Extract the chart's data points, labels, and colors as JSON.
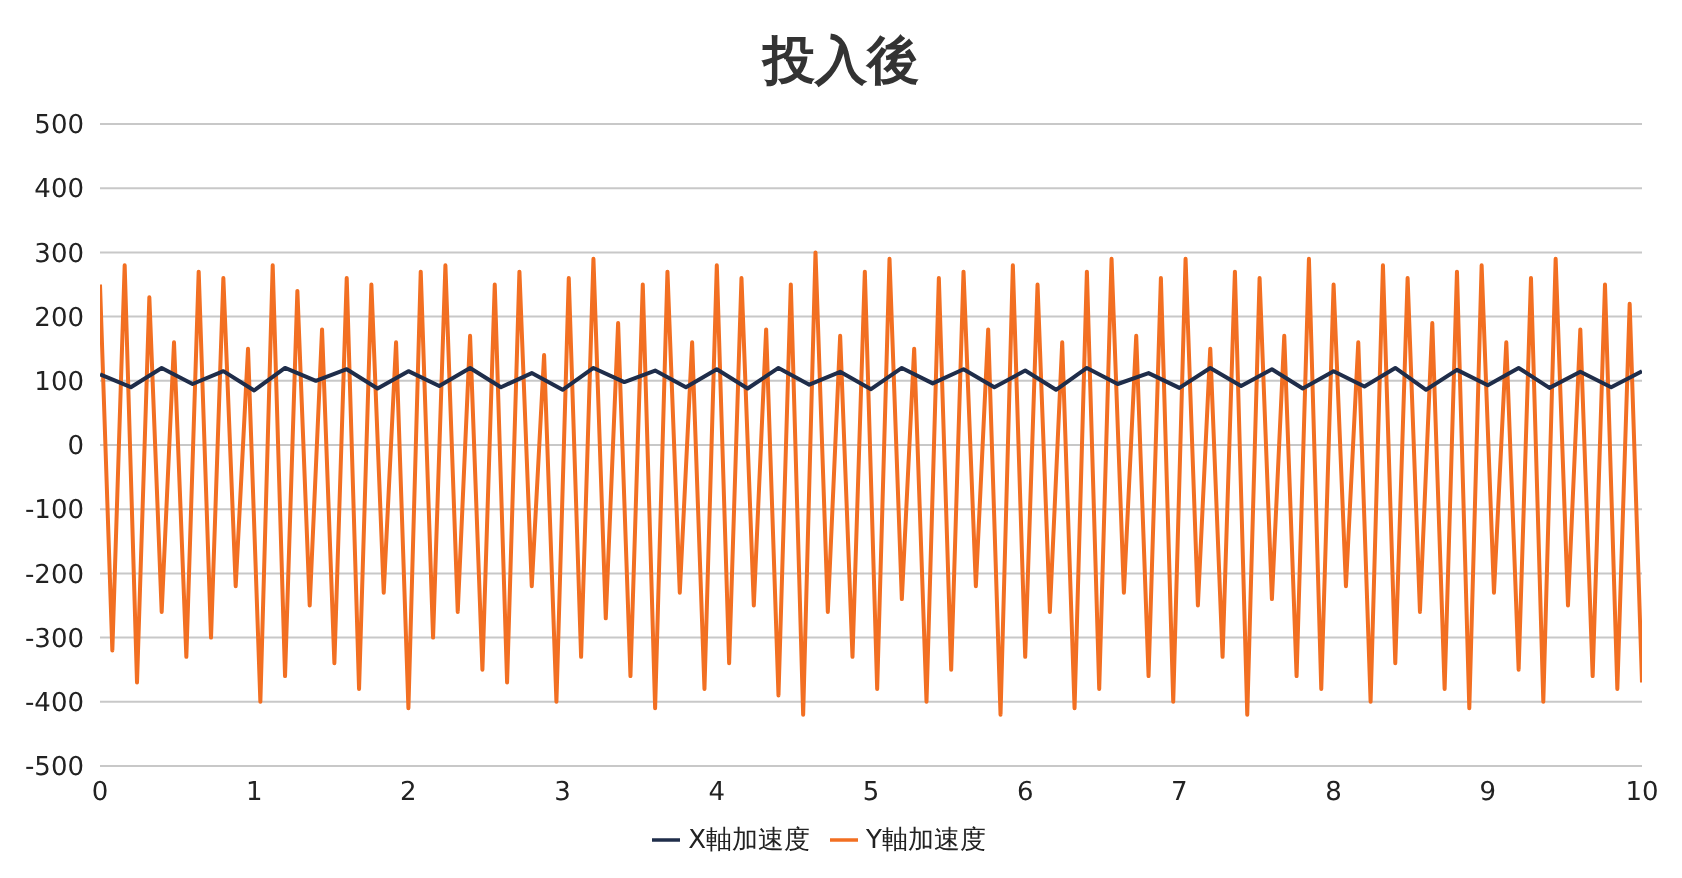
{
  "chart_data": {
    "type": "line",
    "title": "投入後",
    "xlim": [
      0,
      10
    ],
    "xticks": [
      0,
      1,
      2,
      3,
      4,
      5,
      6,
      7,
      8,
      9,
      10
    ],
    "ylim": [
      -500,
      500
    ],
    "yticks": [
      -500,
      -400,
      -300,
      -200,
      -100,
      0,
      100,
      200,
      300,
      400,
      500
    ],
    "grid": "y",
    "legend": "bottom",
    "series": [
      {
        "name": "Y軸加速度",
        "color": "#f26f22",
        "x": [
          0,
          0.08,
          0.16,
          0.24,
          0.32,
          0.4,
          0.48,
          0.56,
          0.64,
          0.72,
          0.8,
          0.88,
          0.96,
          1.04,
          1.12,
          1.2,
          1.28,
          1.36,
          1.44,
          1.52,
          1.6,
          1.68,
          1.76,
          1.84,
          1.92,
          2,
          2.08,
          2.16,
          2.24,
          2.32,
          2.4,
          2.48,
          2.56,
          2.64,
          2.72,
          2.8,
          2.88,
          2.96,
          3.04,
          3.12,
          3.2,
          3.28,
          3.36,
          3.44,
          3.52,
          3.6,
          3.68,
          3.76,
          3.84,
          3.92,
          4,
          4.08,
          4.16,
          4.24,
          4.32,
          4.4,
          4.48,
          4.56,
          4.64,
          4.72,
          4.8,
          4.88,
          4.96,
          5.04,
          5.12,
          5.2,
          5.28,
          5.36,
          5.44,
          5.52,
          5.6,
          5.68,
          5.76,
          5.84,
          5.92,
          6,
          6.08,
          6.16,
          6.24,
          6.32,
          6.4,
          6.48,
          6.56,
          6.64,
          6.72,
          6.8,
          6.88,
          6.96,
          7.04,
          7.12,
          7.2,
          7.28,
          7.36,
          7.44,
          7.52,
          7.6,
          7.68,
          7.76,
          7.84,
          7.92,
          8,
          8.08,
          8.16,
          8.24,
          8.32,
          8.4,
          8.48,
          8.56,
          8.64,
          8.72,
          8.8,
          8.88,
          8.96,
          9.04,
          9.12,
          9.2,
          9.28,
          9.36,
          9.44,
          9.52,
          9.6,
          9.68,
          9.76,
          9.84,
          9.92,
          10
        ],
        "values": [
          250,
          -320,
          280,
          -370,
          230,
          -260,
          160,
          -330,
          270,
          -300,
          260,
          -220,
          150,
          -400,
          280,
          -360,
          240,
          -250,
          180,
          -340,
          260,
          -380,
          250,
          -230,
          160,
          -410,
          270,
          -300,
          280,
          -260,
          170,
          -350,
          250,
          -370,
          270,
          -220,
          140,
          -400,
          260,
          -330,
          290,
          -270,
          190,
          -360,
          250,
          -410,
          270,
          -230,
          160,
          -380,
          280,
          -340,
          260,
          -250,
          180,
          -390,
          250,
          -420,
          300,
          -260,
          170,
          -330,
          270,
          -380,
          290,
          -240,
          150,
          -400,
          260,
          -350,
          270,
          -220,
          180,
          -420,
          280,
          -330,
          250,
          -260,
          160,
          -410,
          270,
          -380,
          290,
          -230,
          170,
          -360,
          260,
          -400,
          290,
          -250,
          150,
          -330,
          270,
          -420,
          260,
          -240,
          170,
          -360,
          290,
          -380,
          250,
          -220,
          160,
          -400,
          280,
          -340,
          260,
          -260,
          190,
          -380,
          270,
          -410,
          280,
          -230,
          160,
          -350,
          260,
          -400,
          290,
          -250,
          180,
          -360,
          250,
          -380,
          220,
          -370
        ]
      },
      {
        "name": "X軸加速度",
        "color": "#1f2d4a",
        "x": [
          0,
          0.2,
          0.4,
          0.6,
          0.8,
          1,
          1.2,
          1.4,
          1.6,
          1.8,
          2,
          2.2,
          2.4,
          2.6,
          2.8,
          3,
          3.2,
          3.4,
          3.6,
          3.8,
          4,
          4.2,
          4.4,
          4.6,
          4.8,
          5,
          5.2,
          5.4,
          5.6,
          5.8,
          6,
          6.2,
          6.4,
          6.6,
          6.8,
          7,
          7.2,
          7.4,
          7.6,
          7.8,
          8,
          8.2,
          8.4,
          8.6,
          8.8,
          9,
          9.2,
          9.4,
          9.6,
          9.8,
          10
        ],
        "values": [
          110,
          90,
          120,
          95,
          115,
          85,
          120,
          100,
          118,
          88,
          115,
          92,
          120,
          90,
          112,
          86,
          120,
          98,
          116,
          90,
          118,
          88,
          120,
          94,
          114,
          87,
          120,
          96,
          118,
          90,
          116,
          86,
          120,
          95,
          112,
          89,
          120,
          92,
          118,
          88,
          115,
          91,
          120,
          86,
          117,
          93,
          120,
          89,
          114,
          90,
          115
        ]
      }
    ]
  }
}
